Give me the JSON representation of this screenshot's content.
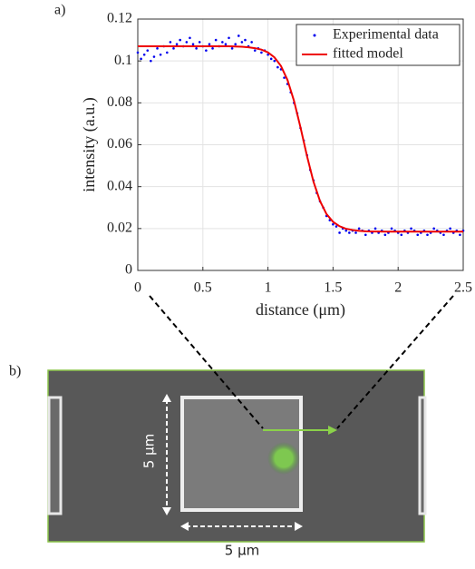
{
  "labels": {
    "panel_a": "a)",
    "panel_b": "b)",
    "scale_vertical": "5 μm",
    "scale_horizontal": "5 μm"
  },
  "chart_data": {
    "type": "scatter-line",
    "xlabel": "distance (μm)",
    "ylabel": "intensity (a.u.)",
    "xlim": [
      0,
      2.5
    ],
    "xticks": [
      0,
      0.5,
      1,
      1.5,
      2,
      2.5
    ],
    "ylim": [
      0,
      0.12
    ],
    "yticks": [
      0,
      0.02,
      0.04,
      0.06,
      0.08,
      0.1,
      0.12
    ],
    "grid": true,
    "legend": "upper right",
    "series": [
      {
        "name": "Experimental data",
        "kind": "scatter",
        "color": "#0000ee",
        "x": [
          0,
          0.025,
          0.05,
          0.075,
          0.1,
          0.125,
          0.15,
          0.175,
          0.2,
          0.225,
          0.25,
          0.275,
          0.3,
          0.325,
          0.35,
          0.375,
          0.4,
          0.425,
          0.45,
          0.475,
          0.5,
          0.525,
          0.55,
          0.575,
          0.6,
          0.625,
          0.65,
          0.675,
          0.7,
          0.725,
          0.75,
          0.775,
          0.8,
          0.825,
          0.85,
          0.875,
          0.9,
          0.925,
          0.95,
          0.975,
          1,
          1.025,
          1.05,
          1.075,
          1.1,
          1.125,
          1.15,
          1.175,
          1.2,
          1.225,
          1.25,
          1.275,
          1.3,
          1.325,
          1.35,
          1.375,
          1.4,
          1.425,
          1.45,
          1.475,
          1.5,
          1.525,
          1.55,
          1.575,
          1.6,
          1.625,
          1.65,
          1.675,
          1.7,
          1.725,
          1.75,
          1.775,
          1.8,
          1.825,
          1.85,
          1.875,
          1.9,
          1.925,
          1.95,
          1.975,
          2,
          2.025,
          2.05,
          2.075,
          2.1,
          2.125,
          2.15,
          2.175,
          2.2,
          2.225,
          2.25,
          2.275,
          2.3,
          2.325,
          2.35,
          2.375,
          2.4,
          2.425,
          2.45,
          2.475,
          2.5
        ],
        "values": [
          0.104,
          0.101,
          0.103,
          0.105,
          0.1,
          0.102,
          0.106,
          0.103,
          0.107,
          0.104,
          0.109,
          0.106,
          0.108,
          0.11,
          0.107,
          0.109,
          0.111,
          0.108,
          0.106,
          0.109,
          0.107,
          0.105,
          0.108,
          0.106,
          0.11,
          0.107,
          0.109,
          0.108,
          0.111,
          0.106,
          0.108,
          0.112,
          0.109,
          0.11,
          0.107,
          0.109,
          0.105,
          0.106,
          0.104,
          0.105,
          0.103,
          0.101,
          0.1,
          0.097,
          0.096,
          0.092,
          0.089,
          0.085,
          0.08,
          0.075,
          0.068,
          0.062,
          0.055,
          0.048,
          0.043,
          0.037,
          0.033,
          0.03,
          0.026,
          0.024,
          0.022,
          0.021,
          0.018,
          0.02,
          0.019,
          0.018,
          0.019,
          0.018,
          0.02,
          0.019,
          0.017,
          0.019,
          0.018,
          0.02,
          0.018,
          0.019,
          0.017,
          0.018,
          0.02,
          0.019,
          0.018,
          0.017,
          0.019,
          0.018,
          0.02,
          0.019,
          0.017,
          0.018,
          0.019,
          0.017,
          0.018,
          0.02,
          0.019,
          0.018,
          0.017,
          0.019,
          0.02,
          0.018,
          0.019,
          0.017,
          0.019
        ]
      },
      {
        "name": "fitted model",
        "kind": "line",
        "color": "#ee0000",
        "x": [
          0,
          0.05,
          0.1,
          0.15,
          0.2,
          0.25,
          0.3,
          0.35,
          0.4,
          0.45,
          0.5,
          0.55,
          0.6,
          0.65,
          0.7,
          0.75,
          0.8,
          0.85,
          0.9,
          0.95,
          1,
          1.05,
          1.1,
          1.15,
          1.2,
          1.25,
          1.3,
          1.35,
          1.4,
          1.45,
          1.5,
          1.55,
          1.6,
          1.65,
          1.7,
          1.75,
          1.8,
          1.85,
          1.9,
          1.95,
          2,
          2.05,
          2.1,
          2.15,
          2.2,
          2.25,
          2.3,
          2.35,
          2.4,
          2.45,
          2.5
        ],
        "values": [
          0.107,
          0.107,
          0.107,
          0.107,
          0.107,
          0.107,
          0.107,
          0.107,
          0.107,
          0.107,
          0.107,
          0.107,
          0.107,
          0.107,
          0.107,
          0.1069,
          0.1068,
          0.1065,
          0.1061,
          0.1054,
          0.1041,
          0.1017,
          0.0976,
          0.0909,
          0.081,
          0.0683,
          0.0546,
          0.0423,
          0.0331,
          0.0269,
          0.0232,
          0.0211,
          0.0199,
          0.0193,
          0.0189,
          0.0187,
          0.0186,
          0.0186,
          0.0185,
          0.0185,
          0.0185,
          0.0185,
          0.0185,
          0.0185,
          0.0185,
          0.0185,
          0.0185,
          0.0185,
          0.0185,
          0.0185,
          0.0185
        ]
      }
    ]
  }
}
